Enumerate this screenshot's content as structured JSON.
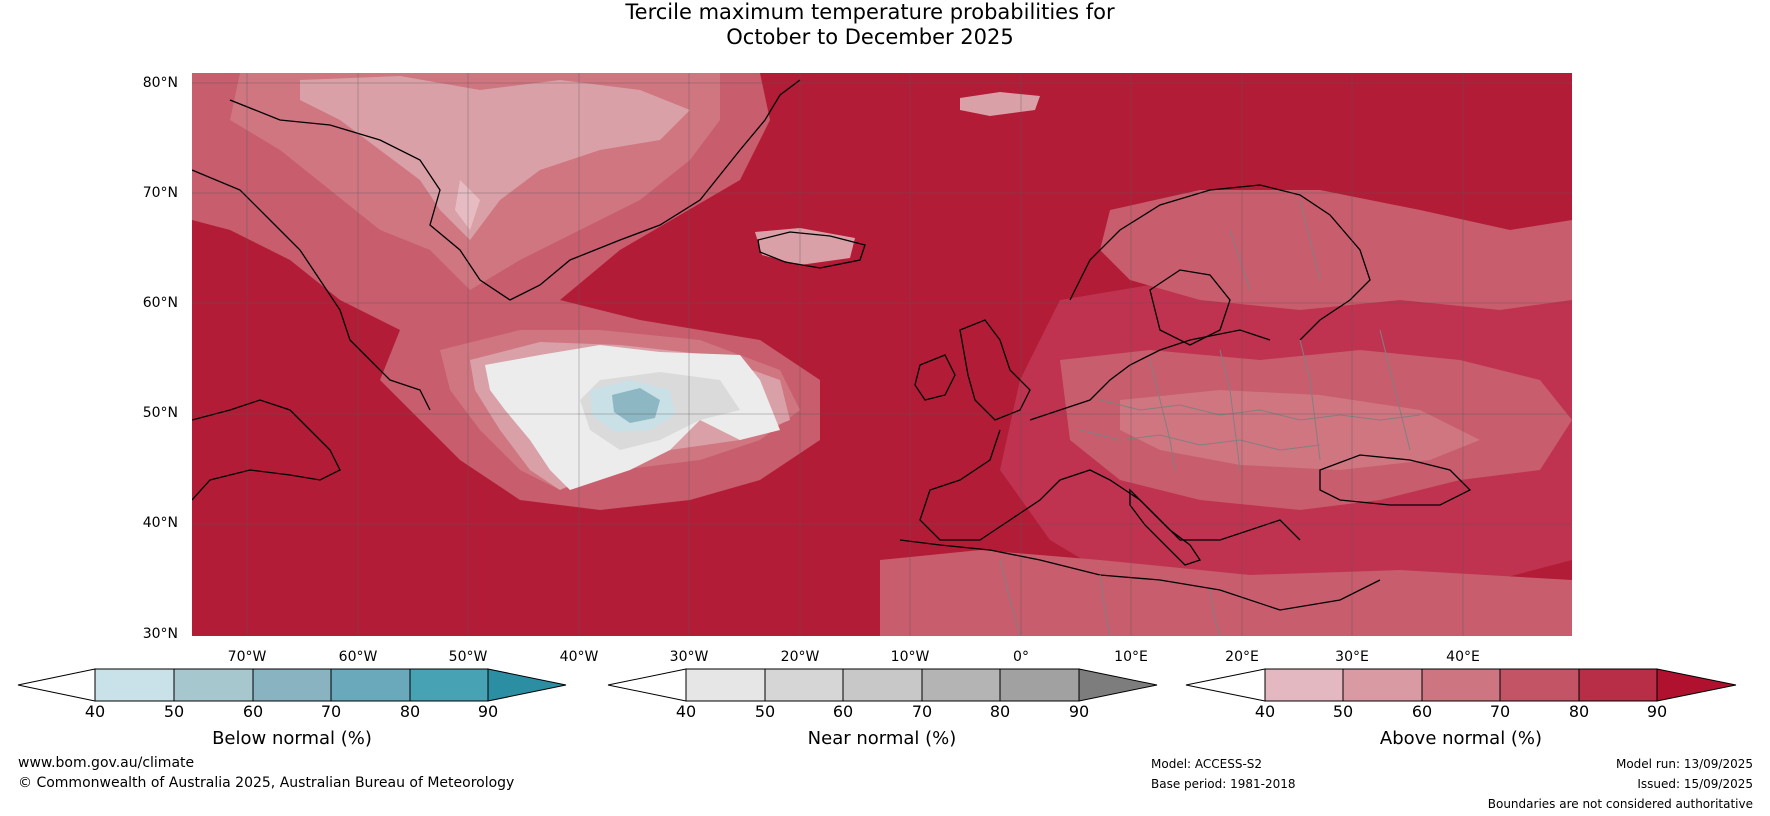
{
  "title": {
    "line1": "Tercile maximum temperature probabilities for",
    "line2": "October to December 2025"
  },
  "map": {
    "latitude_labels": [
      "80°N",
      "70°N",
      "60°N",
      "50°N",
      "40°N",
      "30°N"
    ],
    "longitude_labels": [
      "70°W",
      "60°W",
      "50°W",
      "40°W",
      "30°W",
      "20°W",
      "10°W",
      "0°",
      "10°E",
      "20°E",
      "30°E",
      "40°E"
    ],
    "extent": {
      "lon_min": -75,
      "lon_max": 50,
      "lat_min": 30,
      "lat_max": 81
    },
    "colors": {
      "above_90": "#b21c36",
      "above_80": "#bf3350",
      "above_70": "#c75d6d",
      "above_60": "#cf7681",
      "above_50": "#daa0a8",
      "above_40": "#e6bcc2",
      "near_40": "#ececec",
      "near_50": "#dadada",
      "below_50": "#c8e0e6",
      "below_60": "#8cb7c3",
      "coastline": "#000000",
      "borders": "#808080"
    }
  },
  "colorbars": [
    {
      "name": "below",
      "label": "Below normal (%)",
      "ticks": [
        "40",
        "50",
        "60",
        "70",
        "80",
        "90"
      ],
      "colors": [
        "#c9e1e8",
        "#a7c7cf",
        "#89b3c1",
        "#69a9bb",
        "#47a2b4",
        "#2b8ea3"
      ]
    },
    {
      "name": "near",
      "label": "Near normal (%)",
      "ticks": [
        "40",
        "50",
        "60",
        "70",
        "80",
        "90"
      ],
      "colors": [
        "#e6e6e6",
        "#d6d6d6",
        "#c8c8c8",
        "#b4b4b4",
        "#a1a1a1",
        "#7d7d7d"
      ]
    },
    {
      "name": "above",
      "label": "Above normal (%)",
      "ticks": [
        "40",
        "50",
        "60",
        "70",
        "80",
        "90"
      ],
      "colors": [
        "#e4b8c0",
        "#da9aa4",
        "#cd7682",
        "#c35466",
        "#b92e47",
        "#b0112e"
      ]
    }
  ],
  "footer": {
    "website": "www.bom.gov.au/climate",
    "copyright": "© Commonwealth of Australia 2025, Australian Bureau of Meteorology",
    "model": "Model: ACCESS-S2",
    "base_period": "Base period: 1981-2018",
    "model_run": "Model run: 13/09/2025",
    "issued": "Issued: 15/09/2025",
    "disclaimer": "Boundaries are not considered authoritative"
  }
}
